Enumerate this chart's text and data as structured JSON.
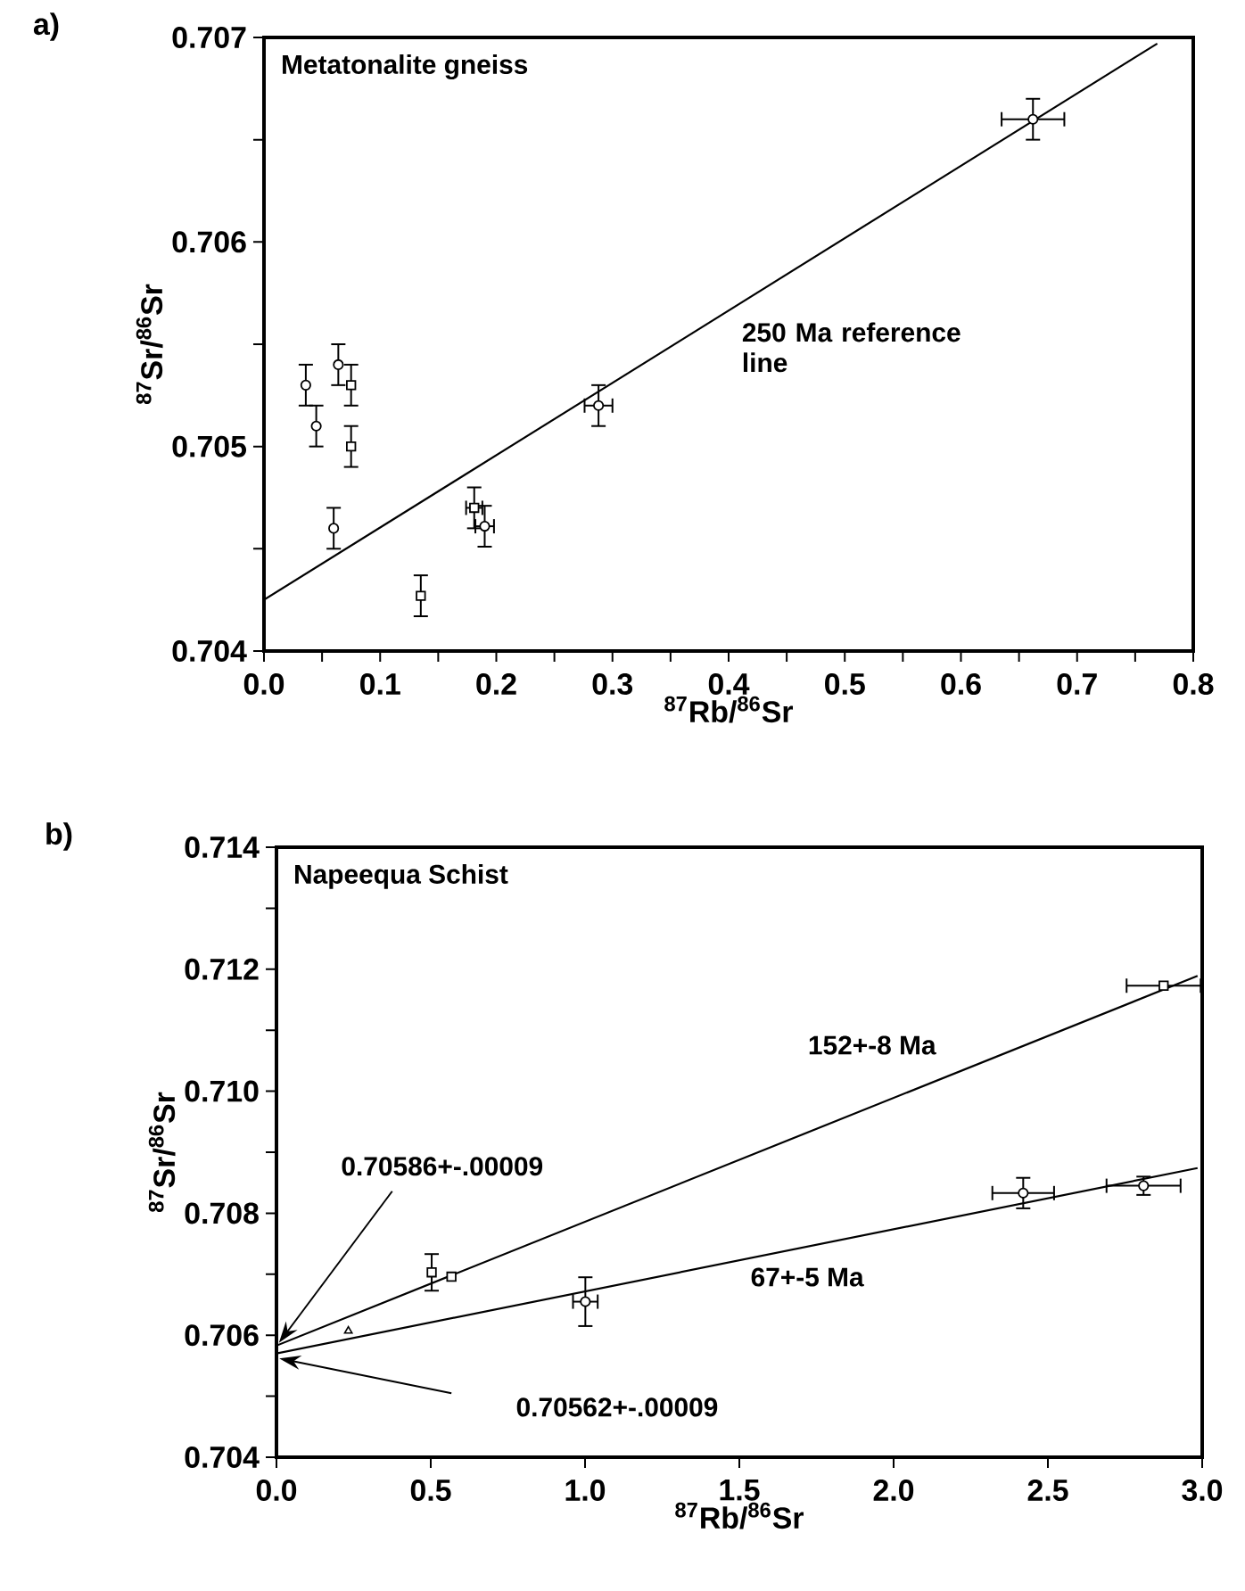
{
  "chart_data": [
    {
      "type": "scatter",
      "title": "a)",
      "xlabel": "$^{87}$Rb/$^{86}$Sr",
      "ylabel": "$^{87}$Sr/$^{86}$Sr",
      "xlim": [
        0,
        0.8
      ],
      "ylim": [
        0.704,
        0.707
      ],
      "xticks": [
        {
          "value": 0,
          "label": "0.0"
        },
        {
          "value": 0.05,
          "label": null
        },
        {
          "value": 0.1,
          "label": "0.1"
        },
        {
          "value": 0.15,
          "label": null
        },
        {
          "value": 0.2,
          "label": "0.2"
        },
        {
          "value": 0.25,
          "label": null
        },
        {
          "value": 0.3,
          "label": "0.3"
        },
        {
          "value": 0.35,
          "label": null
        },
        {
          "value": 0.4,
          "label": "0.4"
        },
        {
          "value": 0.45,
          "label": null
        },
        {
          "value": 0.5,
          "label": "0.5"
        },
        {
          "value": 0.55,
          "label": null
        },
        {
          "value": 0.6,
          "label": "0.6"
        },
        {
          "value": 0.65,
          "label": null
        },
        {
          "value": 0.7,
          "label": "0.7"
        },
        {
          "value": 0.75,
          "label": null
        },
        {
          "value": 0.8,
          "label": "0.8"
        }
      ],
      "yticks": [
        0.704,
        {
          "value": 0.7045,
          "label": null
        },
        0.705,
        {
          "value": 0.7055,
          "label": null
        },
        0.706,
        {
          "value": 0.7065,
          "label": null
        },
        0.707
      ],
      "series": [
        {
          "marker": "circle",
          "color": "#000000",
          "x": [
            0.036,
            0.045,
            0.064,
            0.06,
            0.19,
            0.288,
            0.662
          ],
          "values": [
            0.7053,
            0.7051,
            0.7054,
            0.7046,
            0.70461,
            0.7052,
            0.7066
          ],
          "errors": [
            0.0001,
            0.0001,
            0.0001,
            0.0001,
            0.0001,
            0.0001,
            0.0001
          ],
          "xerrors": [
            null,
            null,
            null,
            null,
            0.008,
            0.012,
            0.027
          ]
        },
        {
          "marker": "square",
          "color": "#000000",
          "x": [
            0.075,
            0.075,
            0.135,
            0.181
          ],
          "values": [
            0.7053,
            0.705,
            0.70427,
            0.7047
          ],
          "errors": [
            0.0001,
            0.0001,
            0.0001,
            0.0001
          ],
          "xerrors": [
            null,
            null,
            null,
            0.007
          ]
        },
        {
          "type": "line",
          "marker": "none",
          "line_style": "solid",
          "color": "#000000",
          "x": [
            0,
            0.769
          ],
          "values": [
            0.70425,
            0.70697
          ]
        }
      ],
      "annotations": [
        "Metatonalite gneiss",
        {
          "text": "250 Ma reference line",
          "x": 0.406,
          "y": 0.70569
        }
      ]
    },
    {
      "type": "scatter",
      "title": "b)",
      "xlabel": "$^{87}$Rb/$^{86}$Sr",
      "ylabel": "$^{87}$Sr/$^{86}$Sr",
      "xlim": [
        0,
        3.0
      ],
      "ylim": [
        0.704,
        0.714
      ],
      "xticks": [
        {
          "value": 0,
          "label": "0.0"
        },
        0.5,
        {
          "value": 1,
          "label": "1.0"
        },
        1.5,
        {
          "value": 2,
          "label": "2.0"
        },
        2.5,
        {
          "value": 3,
          "label": "3.0"
        }
      ],
      "yticks": [
        0.704,
        {
          "value": 0.705,
          "label": null
        },
        0.706,
        {
          "value": 0.707,
          "label": null
        },
        0.708,
        {
          "value": 0.709,
          "label": null
        },
        {
          "value": 0.71,
          "label": "0.710"
        },
        {
          "value": 0.711,
          "label": null
        },
        0.712,
        {
          "value": 0.713,
          "label": null
        },
        0.714
      ],
      "series": [
        {
          "marker": "square",
          "color": "#000000",
          "x": [
            0.503,
            0.567,
            2.875
          ],
          "values": [
            0.70703,
            0.70696,
            0.71173
          ],
          "errors": [
            0.0003,
            null,
            null
          ],
          "xerrors": [
            null,
            null,
            0.12
          ]
        },
        {
          "marker": "triangle",
          "color": "#000000",
          "x": [
            0.233
          ],
          "values": [
            0.70607
          ]
        },
        {
          "marker": "circle",
          "color": "#000000",
          "x": [
            1.001,
            2.42,
            2.81
          ],
          "values": [
            0.70655,
            0.70833,
            0.70845
          ],
          "errors": [
            0.0004,
            0.00025,
            0.00015
          ],
          "xerrors": [
            0.04,
            0.1,
            0.12
          ]
        },
        {
          "type": "line",
          "marker": "none",
          "line_style": "solid",
          "color": "#000000",
          "x": [
            0,
            2.985
          ],
          "values": [
            0.70583,
            0.71189
          ]
        },
        {
          "type": "line",
          "marker": "none",
          "line_style": "solid",
          "color": "#000000",
          "x": [
            0,
            2.985
          ],
          "values": [
            0.7057,
            0.70874
          ]
        }
      ],
      "annotations": [
        "Napeequa Schist",
        {
          "text": "152+-8 Ma",
          "x": 1.93,
          "y": 0.70976
        },
        {
          "text": "67+-5 Ma",
          "x": 1.72,
          "y": 0.70745
        },
        "0.70586+-.00009",
        "0.70562+-.00009"
      ]
    }
  ]
}
